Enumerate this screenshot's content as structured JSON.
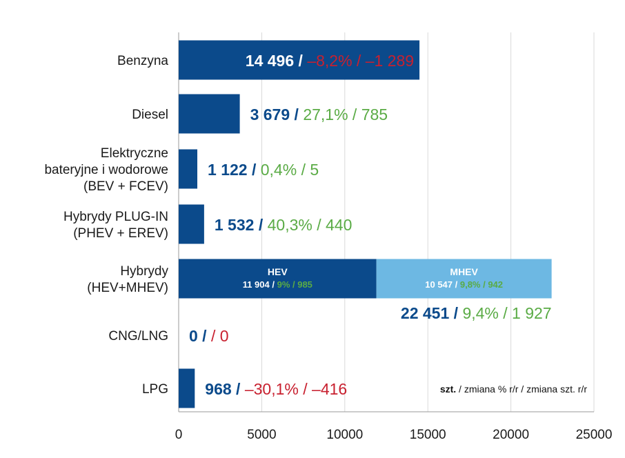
{
  "chart_data": {
    "type": "bar",
    "orientation": "horizontal",
    "stacked": true,
    "categories": [
      {
        "lines": [
          "Benzyna"
        ]
      },
      {
        "lines": [
          "Diesel"
        ]
      },
      {
        "lines": [
          "Elektryczne",
          "bateryjne i wodorowe",
          "(BEV + FCEV)"
        ]
      },
      {
        "lines": [
          "Hybrydy PLUG-IN",
          "(PHEV + EREV)"
        ]
      },
      {
        "lines": [
          "Hybrydy",
          "(HEV+MHEV)"
        ]
      },
      {
        "lines": [
          "CNG/LNG"
        ]
      },
      {
        "lines": [
          "LPG"
        ]
      }
    ],
    "bars": [
      {
        "segments": [
          {
            "value": 14496,
            "color": "#0b4a8b"
          }
        ],
        "value_label": {
          "value": "14 496",
          "sep": " / ",
          "pct": "–8,2%",
          "abs": "–1 289",
          "trend_color": "#c8202f",
          "placement": "inside"
        }
      },
      {
        "segments": [
          {
            "value": 3679,
            "color": "#0b4a8b"
          }
        ],
        "value_label": {
          "value": "3 679",
          "sep": " / ",
          "pct": "27,1%",
          "abs": "785",
          "trend_color": "#5aab45",
          "placement": "right"
        }
      },
      {
        "segments": [
          {
            "value": 1122,
            "color": "#0b4a8b"
          }
        ],
        "value_label": {
          "value": "1 122",
          "sep": " / ",
          "pct": "0,4%",
          "abs": "5",
          "trend_color": "#5aab45",
          "placement": "right"
        }
      },
      {
        "segments": [
          {
            "value": 1532,
            "color": "#0b4a8b"
          }
        ],
        "value_label": {
          "value": "1 532",
          "sep": " / ",
          "pct": "40,3%",
          "abs": "440",
          "trend_color": "#5aab45",
          "placement": "right"
        }
      },
      {
        "segments": [
          {
            "value": 11904,
            "color": "#0b4a8b",
            "title": "HEV",
            "value_text": "11 904",
            "pct": "9%",
            "abs": "985"
          },
          {
            "value": 10547,
            "color": "#6db8e3",
            "title": "MHEV",
            "value_text": "10 547",
            "pct": "9,8%",
            "abs": "942"
          }
        ],
        "value_label": {
          "value": "22 451",
          "sep": " / ",
          "pct": "9,4%",
          "abs": "1 927",
          "trend_color": "#5aab45",
          "placement": "below"
        }
      },
      {
        "segments": [
          {
            "value": 0,
            "color": "#0b4a8b"
          }
        ],
        "value_label": {
          "value": "0",
          "sep": " /  ",
          "pct": "",
          "abs": "/ 0",
          "trend_color": "#c8202f",
          "placement": "right"
        }
      },
      {
        "segments": [
          {
            "value": 968,
            "color": "#0b4a8b"
          }
        ],
        "value_label": {
          "value": "968",
          "sep": " / ",
          "pct": "–30,1%",
          "abs": "–416",
          "trend_color": "#c8202f",
          "placement": "right"
        }
      }
    ],
    "x_ticks": [
      "0",
      "5000",
      "10000",
      "15000",
      "20000",
      "25000"
    ],
    "xlim": [
      0,
      25000
    ],
    "grid": true,
    "legend": {
      "bold": "szt.",
      "rest": " / zmiana % r/r / zmiana szt. r/r",
      "placement": "bottom-right"
    },
    "colors": {
      "primary": "#0b4a8b",
      "secondary": "#6db8e3",
      "negative": "#c8202f",
      "positive": "#5aab45",
      "grid": "#d9d9d9"
    }
  }
}
